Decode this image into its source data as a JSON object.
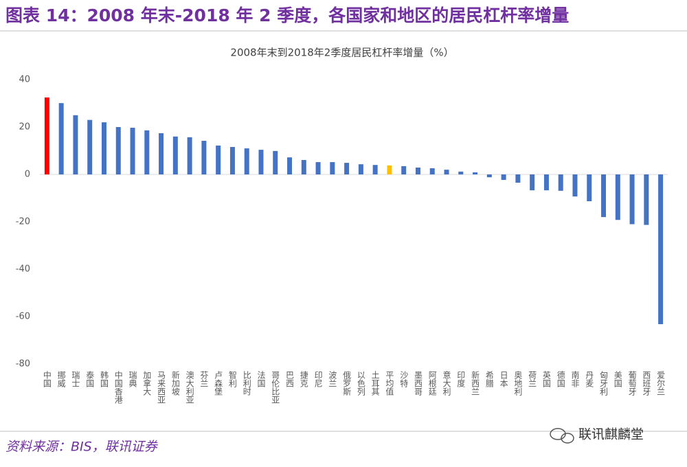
{
  "header": {
    "title": "图表 14：2008 年末-2018 年 2 季度，各国家和地区的居民杠杆率增量"
  },
  "chart_data": {
    "type": "bar",
    "title": "2008年末到2018年2季度居民杠杆率增量（%）",
    "categories": [
      "中国",
      "挪威",
      "瑞士",
      "泰国",
      "韩国",
      "中国香港",
      "瑞典",
      "加拿大",
      "马来西亚",
      "新加坡",
      "澳大利亚",
      "芬兰",
      "卢森堡",
      "智利",
      "比利时",
      "法国",
      "哥伦比亚",
      "巴西",
      "捷克",
      "印尼",
      "波兰",
      "俄罗斯",
      "以色列",
      "土耳其",
      "平均值",
      "沙特",
      "墨西哥",
      "阿根廷",
      "意大利",
      "印度",
      "新西兰",
      "希腊",
      "日本",
      "奥地利",
      "荷兰",
      "英国",
      "德国",
      "南非",
      "丹麦",
      "匈牙利",
      "美国",
      "葡萄牙",
      "西班牙",
      "爱尔兰"
    ],
    "values": [
      32.5,
      30.1,
      25,
      23,
      22,
      20,
      19.7,
      18.6,
      17.4,
      16,
      15.7,
      14.2,
      12.2,
      11.6,
      11,
      10.4,
      9.9,
      7.2,
      6.1,
      5.2,
      5.2,
      4.9,
      4.3,
      4,
      3.8,
      3.5,
      2.9,
      2.6,
      2,
      1.2,
      0.9,
      -1.2,
      -2.3,
      -3.5,
      -6.7,
      -6.7,
      -6.9,
      -9.3,
      -11.3,
      -18,
      -19.2,
      -21,
      -21.3,
      -63.2
    ],
    "colors": [
      "#ff0000",
      "#4472c4",
      "#4472c4",
      "#4472c4",
      "#4472c4",
      "#4472c4",
      "#4472c4",
      "#4472c4",
      "#4472c4",
      "#4472c4",
      "#4472c4",
      "#4472c4",
      "#4472c4",
      "#4472c4",
      "#4472c4",
      "#4472c4",
      "#4472c4",
      "#4472c4",
      "#4472c4",
      "#4472c4",
      "#4472c4",
      "#4472c4",
      "#4472c4",
      "#4472c4",
      "#ffc000",
      "#4472c4",
      "#4472c4",
      "#4472c4",
      "#4472c4",
      "#4472c4",
      "#4472c4",
      "#4472c4",
      "#4472c4",
      "#4472c4",
      "#4472c4",
      "#4472c4",
      "#4472c4",
      "#4472c4",
      "#4472c4",
      "#4472c4",
      "#4472c4",
      "#4472c4",
      "#4472c4",
      "#4472c4"
    ],
    "ylim": [
      -80,
      40
    ],
    "yticks": [
      40,
      20,
      0,
      -20,
      -40,
      -60,
      -80
    ],
    "grid": false
  },
  "footer": {
    "source": "资料来源：BIS，联讯证券",
    "watermark": "联讯麒麟堂"
  }
}
